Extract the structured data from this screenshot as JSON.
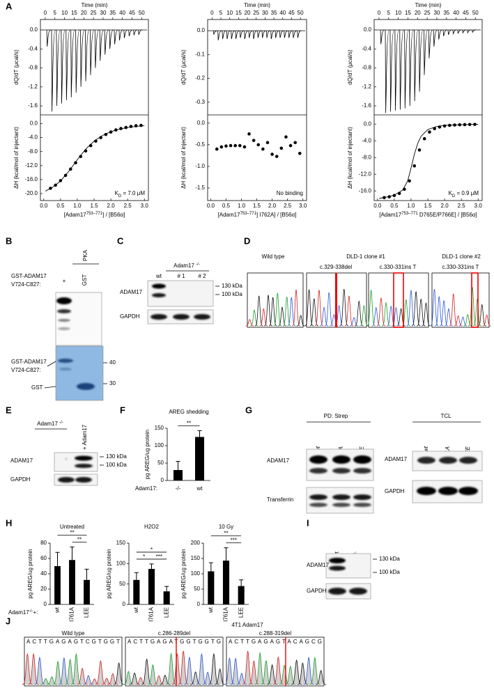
{
  "panel_labels": [
    "A",
    "B",
    "C",
    "D",
    "E",
    "F",
    "G",
    "H",
    "I",
    "J"
  ],
  "A": {
    "charts": [
      {
        "type": "itc",
        "top": {
          "x_label": "Time (min)",
          "y_label": "dQ/dT (μcal/s)",
          "xlim": [
            -2.5,
            53.5
          ],
          "xticks": [
            0,
            5,
            10,
            15,
            20,
            25,
            30,
            35,
            40,
            45,
            50
          ],
          "ylim": [
            -1.79,
            0.22
          ],
          "yticks": [
            {
              "value": 0,
              "label": "0.0"
            },
            -0.4,
            -0.8,
            -1.2,
            -1.6
          ],
          "x": [
            1,
            3.5,
            6,
            8.5,
            11,
            13.5,
            16,
            18.5,
            21,
            23.5,
            26,
            28.5,
            31,
            33.5,
            36,
            38.5,
            41,
            43.5,
            46,
            48.5
          ],
          "values": [
            -0.35,
            -1.72,
            -1.6,
            -1.55,
            -1.48,
            -1.42,
            -1.32,
            -1.2,
            -1.08,
            -0.95,
            -0.8,
            -0.65,
            -0.52,
            -0.4,
            -0.3,
            -0.22,
            -0.17,
            -0.13,
            -0.11,
            -0.1
          ]
        },
        "bottom": {
          "x_label": [
            "[Adam17",
            "753–771",
            "] / [B56α]"
          ],
          "y_label": "ΔH (kcal/mol of injectant)",
          "xlim": [
            -0.1,
            3.12
          ],
          "xticks": [
            {
              "value": 0,
              "label": "0.0"
            },
            0.5,
            {
              "value": 1,
              "label": "1.0"
            },
            1.5,
            {
              "value": 2,
              "label": "2.0"
            },
            2.5,
            {
              "value": 3,
              "label": "3.0"
            }
          ],
          "ylim": [
            -22,
            2.5
          ],
          "yticks": [
            {
              "value": 0,
              "label": "0.0"
            },
            {
              "value": -4,
              "label": "-4.0"
            },
            {
              "value": -8,
              "label": "-8.0"
            },
            {
              "value": -12,
              "label": "-12.0"
            },
            {
              "value": -16,
              "label": "-16.0"
            },
            {
              "value": -20,
              "label": "-20.0"
            }
          ],
          "x": [
            0.2,
            0.35,
            0.5,
            0.65,
            0.8,
            0.95,
            1.1,
            1.25,
            1.4,
            1.55,
            1.7,
            1.85,
            2.0,
            2.15,
            2.3,
            2.45,
            2.6,
            2.75,
            2.9
          ],
          "values": [
            -18.5,
            -17.6,
            -16.3,
            -14.8,
            -13.0,
            -11.2,
            -9.4,
            -7.8,
            -6.3,
            -5.0,
            -4.0,
            -3.1,
            -2.4,
            -1.8,
            -1.4,
            -1.1,
            -0.8,
            -0.6,
            -0.5
          ],
          "fit": {
            "x": [
              0.05,
              0.25,
              0.5,
              0.75,
              1.0,
              1.25,
              1.5,
              1.75,
              2.0,
              2.25,
              2.5,
              2.75,
              3.0
            ],
            "values": [
              -19.3,
              -18.3,
              -16.4,
              -13.6,
              -10.3,
              -7.3,
              -5.0,
              -3.4,
              -2.3,
              -1.6,
              -1.1,
              -0.8,
              -0.6
            ]
          },
          "annotation": [
            "K",
            "D",
            " = 7.0 μM"
          ]
        }
      },
      {
        "type": "itc",
        "top": {
          "x_label": "Time (min)",
          "y_label": "dQ/dT (μcal/s)",
          "xlim": [
            -2.5,
            53.5
          ],
          "xticks": [
            0,
            5,
            10,
            15,
            20,
            25,
            30,
            35,
            40,
            45,
            50
          ],
          "ylim": [
            -0.353,
            0.047
          ],
          "yticks": [
            {
              "value": 0,
              "label": "0.0"
            },
            -0.1,
            -0.2,
            -0.3
          ],
          "x": [
            1,
            3.5,
            6,
            8.5,
            11,
            13.5,
            16,
            18.5,
            21,
            23.5,
            26,
            28.5,
            31,
            33.5,
            36,
            38.5,
            41,
            43.5,
            46,
            48.5
          ],
          "values": [
            -0.015,
            -0.04,
            -0.035,
            -0.035,
            -0.035,
            -0.035,
            -0.03,
            -0.035,
            -0.03,
            -0.035,
            -0.03,
            -0.03,
            -0.03,
            -0.035,
            -0.03,
            -0.03,
            -0.03,
            -0.03,
            -0.03,
            -0.03
          ]
        },
        "bottom": {
          "x_label": [
            "[Adam17",
            "753–771",
            "] I762A] / [B56α]"
          ],
          "y_label": "ΔH (kcal/mol of injectant)",
          "xlim": [
            -0.1,
            3.12
          ],
          "xticks": [
            {
              "value": 0,
              "label": "0.0"
            },
            0.5,
            {
              "value": 1,
              "label": "1.0"
            },
            1.5,
            {
              "value": 2,
              "label": "2.0"
            },
            2.5,
            {
              "value": 3,
              "label": "3.0"
            }
          ],
          "ylim": [
            -1.79,
            0.19
          ],
          "yticks": [
            {
              "value": 0,
              "label": "0.0"
            },
            -0.5,
            {
              "value": -1,
              "label": "-1.0"
            },
            -1.5
          ],
          "x": [
            0.2,
            0.35,
            0.5,
            0.65,
            0.8,
            0.95,
            1.1,
            1.25,
            1.4,
            1.55,
            1.7,
            1.85,
            2.0,
            2.15,
            2.3,
            2.45,
            2.6,
            2.75,
            2.9
          ],
          "values": [
            -0.6,
            -0.55,
            -0.53,
            -0.52,
            -0.52,
            -0.52,
            -0.55,
            -0.25,
            -0.4,
            -0.5,
            -0.6,
            -0.45,
            -0.72,
            -0.77,
            -0.58,
            -0.32,
            -0.52,
            -0.45,
            -0.7
          ],
          "annotation": [
            "No binding"
          ]
        }
      },
      {
        "type": "itc",
        "top": {
          "x_label": "Time (min)",
          "y_label": "dQ/dT (μcal/s)",
          "xlim": [
            -2.5,
            53.5
          ],
          "xticks": [
            0,
            5,
            10,
            15,
            20,
            25,
            30,
            35,
            40,
            45,
            50
          ],
          "ylim": [
            -1.79,
            0.22
          ],
          "yticks": [
            {
              "value": 0,
              "label": "0.0"
            },
            -0.4,
            -0.8,
            -1.2,
            -1.6
          ],
          "x": [
            1,
            3.5,
            6,
            8.5,
            11,
            13.5,
            16,
            18.5,
            21,
            23.5,
            26,
            28.5,
            31,
            33.5,
            36,
            38.5,
            41,
            43.5,
            46,
            48.5
          ],
          "values": [
            -0.3,
            -1.75,
            -1.72,
            -1.7,
            -1.68,
            -1.65,
            -1.6,
            -1.5,
            -1.3,
            -0.95,
            -0.6,
            -0.35,
            -0.2,
            -0.13,
            -0.1,
            -0.08,
            -0.07,
            -0.06,
            -0.06,
            -0.05
          ]
        },
        "bottom": {
          "x_label": [
            "[Adam17",
            "753–771",
            " D765E/P766E] / [B56α]"
          ],
          "y_label": "ΔH (kcal/mol of injectant)",
          "xlim": [
            -0.1,
            3.12
          ],
          "xticks": [
            {
              "value": 0,
              "label": "0.0"
            },
            0.5,
            {
              "value": 1,
              "label": "1.0"
            },
            1.5,
            {
              "value": 2,
              "label": "2.0"
            },
            2.5,
            {
              "value": 3,
              "label": "3.0"
            }
          ],
          "ylim": [
            -18.3,
            2.2
          ],
          "yticks": [
            {
              "value": 0,
              "label": "0.0"
            },
            {
              "value": -4,
              "label": "-4.0"
            },
            {
              "value": -8,
              "label": "-8.0"
            },
            {
              "value": -12,
              "label": "-12.0"
            },
            {
              "value": -16,
              "label": "-16.0"
            }
          ],
          "x": [
            0.2,
            0.35,
            0.5,
            0.65,
            0.8,
            0.95,
            1.1,
            1.25,
            1.4,
            1.55,
            1.7,
            1.85,
            2.0,
            2.15,
            2.3,
            2.45,
            2.6,
            2.75,
            2.9
          ],
          "values": [
            -17.6,
            -17.4,
            -17.1,
            -16.6,
            -15.6,
            -13.6,
            -10.0,
            -6.2,
            -3.5,
            -1.9,
            -1.1,
            -0.7,
            -0.45,
            -0.3,
            -0.22,
            -0.17,
            -0.13,
            -0.1,
            -0.08
          ],
          "fit": {
            "x": [
              0.05,
              0.25,
              0.5,
              0.75,
              0.9,
              1.0,
              1.1,
              1.2,
              1.3,
              1.5,
              1.75,
              2.0,
              2.5,
              3.0
            ],
            "values": [
              -17.8,
              -17.5,
              -17.0,
              -15.8,
              -13.6,
              -10.5,
              -7.2,
              -4.6,
              -2.9,
              -1.3,
              -0.6,
              -0.3,
              -0.15,
              -0.05
            ]
          },
          "annotation": [
            "K",
            "D",
            " = 0.9 μM"
          ]
        }
      }
    ]
  },
  "B": {
    "header": "PKA",
    "construct": [
      "GST-ADAM17",
      "V724-C827:"
    ],
    "lanes": [
      "+",
      "GST"
    ],
    "gel_construct": [
      "GST-ADAM17",
      "V724-C827:"
    ],
    "gel_gst": "GST",
    "markers": [
      40,
      30
    ]
  },
  "C": {
    "group": [
      "Adam17 ",
      "-/-"
    ],
    "lanes": [
      "wt",
      "# 1",
      "# 2"
    ],
    "rows": [
      "ADAM17",
      "GAPDH"
    ],
    "markers": [
      "130 kDa",
      "100 kDa"
    ]
  },
  "D": {
    "titles": [
      "Wild type",
      "DLD-1 clone #1",
      "DLD-1 clone #2"
    ],
    "mutations": [
      "c.329-338del",
      "c.330-331ins T",
      "c.330-331ins T"
    ]
  },
  "E": {
    "group": [
      "Adam17 ",
      "-/-"
    ],
    "lanes": [
      "+ Adam17"
    ],
    "rows": [
      "ADAM17",
      "GAPDH"
    ],
    "markers": [
      "130 kDa",
      "100 kDa"
    ]
  },
  "F": {
    "chart_data": {
      "type": "bar",
      "title": "AREG shedding",
      "y_label": "pg AREG/ug protein",
      "x_label": "Adam17:",
      "categories": [
        "-/-",
        "wt"
      ],
      "values": [
        30,
        125
      ],
      "errors": [
        25,
        18
      ],
      "color": "#000000",
      "ylim": [
        0,
        150
      ],
      "yticks": [
        0,
        50,
        100,
        150
      ],
      "significance": [
        {
          "label": "**",
          "between": [
            0,
            1
          ]
        }
      ]
    }
  },
  "G": {
    "groups": [
      "PD: Strep",
      "TCL"
    ],
    "lanes": [
      [
        "wt",
        "I761A",
        "LEE"
      ],
      [
        "wt",
        "I761A",
        "LEE"
      ]
    ],
    "rows_left": [
      "ADAM17",
      "Transferrin"
    ],
    "rows_right": [
      "ADAM17",
      "GAPDH"
    ]
  },
  "H": {
    "group_label": [
      "Adam17",
      "-/-",
      "+:"
    ],
    "chart_data": [
      {
        "type": "bar",
        "title": "Untreated",
        "y_label": "pg AREG/ug protein",
        "categories": [
          "wt",
          "I761A",
          "LEE"
        ],
        "values": [
          50,
          58,
          32
        ],
        "errors": [
          18,
          17,
          14
        ],
        "color": "#000000",
        "ylim": [
          0,
          80
        ],
        "yticks": [
          0,
          20,
          40,
          60,
          80
        ],
        "significance": [
          {
            "label": "**",
            "between": [
              1,
              2
            ]
          },
          {
            "label": "**",
            "between": [
              0,
              2
            ]
          }
        ]
      },
      {
        "type": "bar",
        "title": "H2O2",
        "y_label": "pg AREG/ug protein",
        "categories": [
          "wt",
          "I761A",
          "LEE"
        ],
        "values": [
          60,
          87,
          32
        ],
        "errors": [
          18,
          12,
          12
        ],
        "color": "#000000",
        "ylim": [
          0,
          150
        ],
        "yticks": [
          0,
          50,
          100,
          150
        ],
        "significance": [
          {
            "label": "*",
            "between": [
              0,
              1
            ]
          },
          {
            "label": "***",
            "between": [
              1,
              2
            ]
          },
          {
            "label": "*",
            "between": [
              0,
              2
            ]
          }
        ]
      },
      {
        "type": "bar",
        "title": "10 Gy",
        "y_label": "pg AREG/ug protein",
        "categories": [
          "wt",
          "I761A",
          "LEE"
        ],
        "values": [
          108,
          143,
          60
        ],
        "errors": [
          28,
          42,
          20
        ],
        "color": "#000000",
        "ylim": [
          0,
          200
        ],
        "yticks": [
          0,
          50,
          100,
          150,
          200
        ],
        "significance": [
          {
            "label": "***",
            "between": [
              1,
              2
            ]
          },
          {
            "label": "**",
            "between": [
              0,
              2
            ]
          }
        ]
      }
    ]
  },
  "I": {
    "lanes": [
      "wt"
    ],
    "group": [
      "Adam17 ",
      "-/-"
    ],
    "rows": [
      "ADAM17",
      "GAPDH"
    ],
    "markers": [
      "130 kDa",
      "100 kDa"
    ]
  },
  "J": {
    "title": "4T1 Adam17",
    "titles": [
      "Wild type",
      "c.286-289del",
      "c.288-319del"
    ],
    "sequences": [
      "ACTTGAGAGTCGTGGT",
      "ACTTGAGATGGTGGTG",
      "ACTTGAGAGTACAGCG"
    ]
  }
}
